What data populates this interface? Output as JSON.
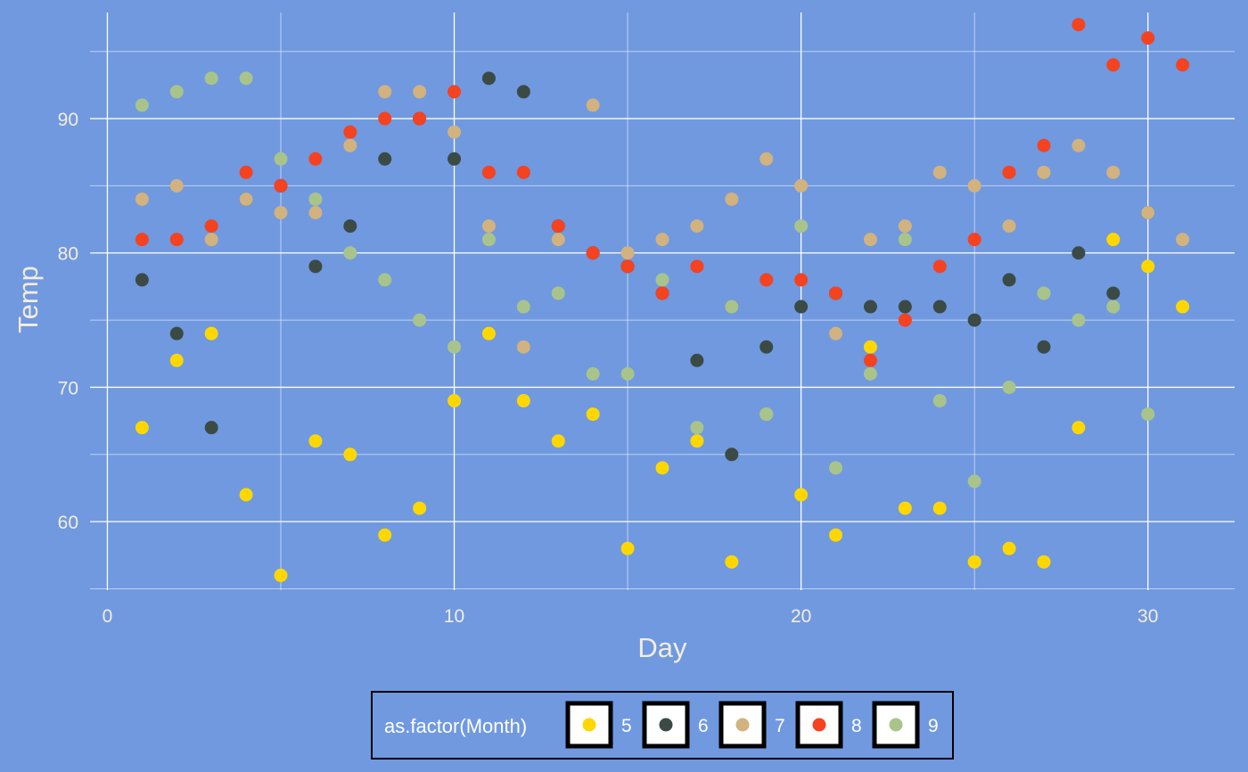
{
  "chart_data": {
    "type": "scatter",
    "title": "",
    "xlabel": "Day",
    "ylabel": "Temp",
    "xlim": [
      -0.5,
      32.5
    ],
    "ylim": [
      54.9,
      97.9
    ],
    "x_ticks": [
      0,
      10,
      20,
      30
    ],
    "y_ticks": [
      60,
      70,
      80,
      90
    ],
    "grid": true,
    "legend": {
      "title": "as.factor(Month)",
      "position": "bottom"
    },
    "series": [
      {
        "name": "5",
        "color": "#ffd700",
        "x": [
          1,
          2,
          3,
          4,
          5,
          6,
          7,
          8,
          9,
          10,
          11,
          12,
          13,
          14,
          15,
          16,
          17,
          18,
          19,
          20,
          21,
          22,
          23,
          24,
          25,
          26,
          27,
          28,
          29,
          30,
          31
        ],
        "y": [
          67,
          72,
          74,
          62,
          56,
          66,
          65,
          59,
          61,
          69,
          74,
          69,
          66,
          68,
          58,
          64,
          66,
          57,
          68,
          62,
          59,
          73,
          61,
          61,
          57,
          58,
          57,
          67,
          81,
          79,
          76
        ]
      },
      {
        "name": "6",
        "color": "#3b4a45",
        "x": [
          1,
          2,
          3,
          4,
          5,
          6,
          7,
          8,
          9,
          10,
          11,
          12,
          13,
          14,
          15,
          16,
          17,
          18,
          19,
          20,
          21,
          22,
          23,
          24,
          25,
          26,
          27,
          28,
          29,
          30
        ],
        "y": [
          78,
          74,
          67,
          84,
          85,
          79,
          82,
          87,
          90,
          87,
          93,
          92,
          82,
          80,
          79,
          77,
          72,
          65,
          73,
          76,
          77,
          76,
          76,
          76,
          75,
          78,
          73,
          80,
          77,
          83
        ]
      },
      {
        "name": "7",
        "color": "#d2b27e",
        "x": [
          1,
          2,
          3,
          4,
          5,
          6,
          7,
          8,
          9,
          10,
          11,
          12,
          13,
          14,
          15,
          16,
          17,
          18,
          19,
          20,
          21,
          22,
          23,
          24,
          25,
          26,
          27,
          28,
          29,
          30,
          31
        ],
        "y": [
          84,
          85,
          81,
          84,
          83,
          83,
          88,
          92,
          92,
          89,
          82,
          73,
          81,
          91,
          80,
          81,
          82,
          84,
          87,
          85,
          74,
          81,
          82,
          86,
          85,
          82,
          86,
          88,
          86,
          83,
          81
        ]
      },
      {
        "name": "8",
        "color": "#f5421f",
        "x": [
          1,
          2,
          3,
          4,
          5,
          6,
          7,
          8,
          9,
          10,
          11,
          12,
          13,
          14,
          15,
          16,
          17,
          18,
          19,
          20,
          21,
          22,
          23,
          24,
          25,
          26,
          27,
          28,
          29,
          30,
          31
        ],
        "y": [
          81,
          81,
          82,
          86,
          85,
          87,
          89,
          90,
          90,
          92,
          86,
          86,
          82,
          80,
          79,
          77,
          79,
          76,
          78,
          78,
          77,
          72,
          75,
          79,
          81,
          86,
          88,
          97,
          94,
          96,
          94
        ]
      },
      {
        "name": "9",
        "color": "#a9c48a",
        "x": [
          1,
          2,
          3,
          4,
          5,
          6,
          7,
          8,
          9,
          10,
          11,
          12,
          13,
          14,
          15,
          16,
          17,
          18,
          19,
          20,
          21,
          22,
          23,
          24,
          25,
          26,
          27,
          28,
          29,
          30
        ],
        "y": [
          91,
          92,
          93,
          93,
          87,
          84,
          80,
          78,
          75,
          73,
          81,
          76,
          77,
          71,
          71,
          78,
          67,
          76,
          68,
          82,
          64,
          71,
          81,
          69,
          63,
          70,
          77,
          75,
          76,
          68
        ]
      }
    ]
  }
}
